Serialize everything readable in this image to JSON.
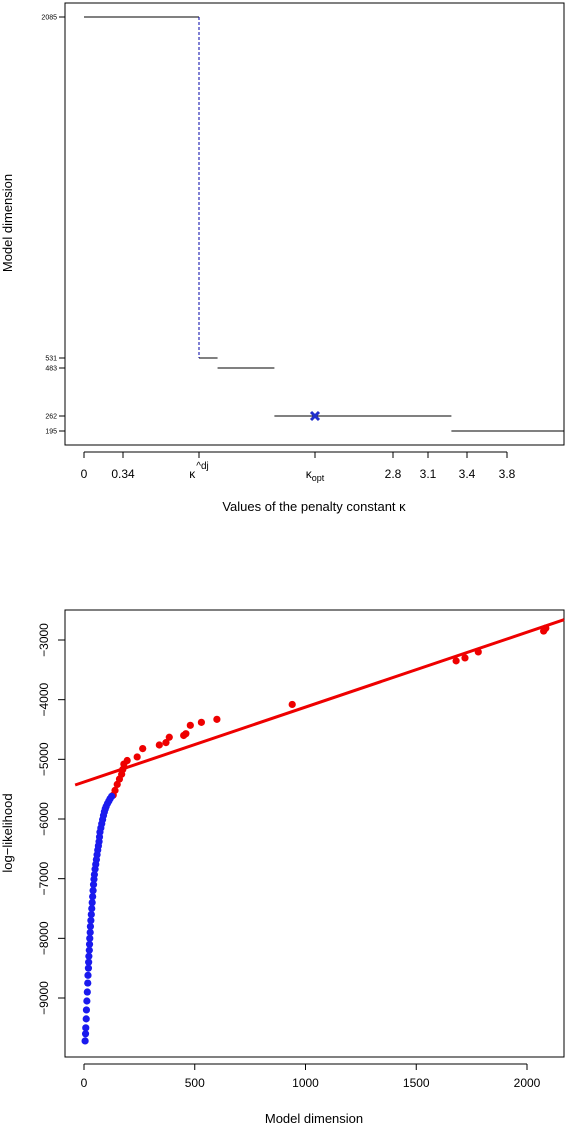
{
  "chart_data": [
    {
      "type": "step",
      "xlabel": "Values of the penalty constant κ",
      "ylabel": "Model dimension",
      "xticks": [
        {
          "label": "0",
          "value": 0
        },
        {
          "label": "0.34",
          "value": 0.34
        },
        {
          "label": "κ^dj",
          "value": 1.0,
          "main": "κ",
          "sup": "^dj"
        },
        {
          "label": "κ_opt",
          "value": 2.0,
          "main": "κ",
          "sub": "opt"
        },
        {
          "label": "2.8",
          "value": 2.8
        },
        {
          "label": "3.1",
          "value": 3.1
        },
        {
          "label": "3.4",
          "value": 3.4
        },
        {
          "label": "3.8",
          "value": 3.8
        }
      ],
      "yticks": [
        "2085",
        "531",
        "483",
        "262",
        "195"
      ],
      "xlim": [
        -0.1,
        4.2
      ],
      "ylim": [
        145,
        2085
      ],
      "segments": [
        {
          "x0": 0.0,
          "x1": 1.0,
          "y": 2085
        },
        {
          "x0": 1.0,
          "x1": 1.16,
          "y": 531
        },
        {
          "x0": 1.16,
          "x1": 1.65,
          "y": 483
        },
        {
          "x0": 1.65,
          "x1": 3.28,
          "y": 262
        },
        {
          "x0": 3.28,
          "x1": 4.2,
          "y": 195
        }
      ],
      "jump": {
        "x": 1.0,
        "y_from": 2085,
        "y_to": 531,
        "style": "dashed",
        "color": "#0000aa"
      },
      "marker": {
        "x": 2.0,
        "y": 262,
        "symbol": "x",
        "color": "#1f2fcc"
      },
      "colors": {
        "line": "#000000",
        "dashed": "#0000aa",
        "marker": "#1f2fcc"
      }
    },
    {
      "type": "scatter",
      "xlabel": "Model dimension",
      "ylabel": "log−likelihood",
      "xticks": [
        0,
        500,
        1000,
        1500,
        2000
      ],
      "yticks": [
        -3000,
        -4000,
        -5000,
        -6000,
        -7000,
        -8000,
        -9000
      ],
      "xlim": [
        -40,
        2170
      ],
      "ylim": [
        -10000,
        -2500
      ],
      "fit_line": {
        "points": [
          [
            -40,
            -5430
          ],
          [
            2170,
            -2660
          ]
        ],
        "color": "#ee0000"
      },
      "series": [
        {
          "color": "#ee0000",
          "points": [
            [
              2085,
              -2800
            ],
            [
              2080,
              -2820
            ],
            [
              2075,
              -2850
            ],
            [
              1780,
              -3200
            ],
            [
              1720,
              -3300
            ],
            [
              1680,
              -3350
            ],
            [
              940,
              -4080
            ],
            [
              600,
              -4330
            ],
            [
              530,
              -4380
            ],
            [
              480,
              -4430
            ],
            [
              460,
              -4570
            ],
            [
              450,
              -4600
            ],
            [
              385,
              -4630
            ],
            [
              370,
              -4720
            ],
            [
              340,
              -4760
            ],
            [
              265,
              -4820
            ],
            [
              240,
              -4960
            ],
            [
              195,
              -5020
            ],
            [
              180,
              -5080
            ],
            [
              175,
              -5170
            ],
            [
              170,
              -5250
            ],
            [
              160,
              -5330
            ],
            [
              150,
              -5420
            ],
            [
              140,
              -5520
            ],
            [
              132,
              -5600
            ]
          ]
        },
        {
          "color": "#1a1aee",
          "points": [
            [
              125,
              -5620
            ],
            [
              118,
              -5660
            ],
            [
              112,
              -5700
            ],
            [
              106,
              -5740
            ],
            [
              100,
              -5790
            ],
            [
              96,
              -5830
            ],
            [
              92,
              -5880
            ],
            [
              88,
              -5940
            ],
            [
              84,
              -6010
            ],
            [
              80,
              -6080
            ],
            [
              76,
              -6150
            ],
            [
              72,
              -6220
            ],
            [
              70,
              -6300
            ],
            [
              68,
              -6380
            ],
            [
              65,
              -6450
            ],
            [
              62,
              -6520
            ],
            [
              59,
              -6600
            ],
            [
              56,
              -6680
            ],
            [
              53,
              -6760
            ],
            [
              50,
              -6840
            ],
            [
              47,
              -6930
            ],
            [
              45,
              -7010
            ],
            [
              43,
              -7100
            ],
            [
              41,
              -7200
            ],
            [
              39,
              -7300
            ],
            [
              37,
              -7400
            ],
            [
              35,
              -7500
            ],
            [
              33,
              -7600
            ],
            [
              31,
              -7700
            ],
            [
              29,
              -7800
            ],
            [
              28,
              -7900
            ],
            [
              26,
              -8000
            ],
            [
              25,
              -8100
            ],
            [
              24,
              -8200
            ],
            [
              22,
              -8300
            ],
            [
              21,
              -8400
            ],
            [
              20,
              -8500
            ],
            [
              18,
              -8620
            ],
            [
              17,
              -8750
            ],
            [
              15,
              -8900
            ],
            [
              13,
              -9050
            ],
            [
              11,
              -9200
            ],
            [
              10,
              -9350
            ],
            [
              8,
              -9500
            ],
            [
              7,
              -9600
            ],
            [
              5,
              -9720
            ]
          ]
        }
      ],
      "colors": {
        "fit": "#ee0000",
        "red_points": "#ee0000",
        "blue_points": "#1a1aee"
      }
    }
  ]
}
